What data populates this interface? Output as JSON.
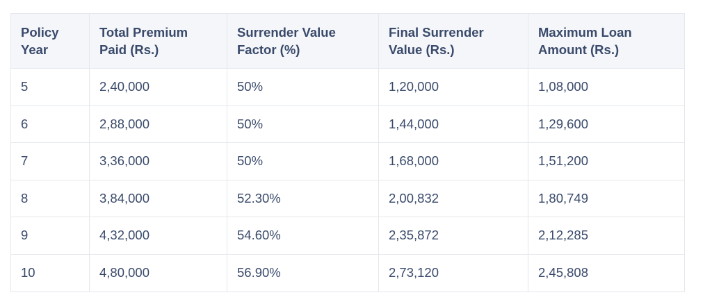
{
  "table": {
    "headers": [
      "Policy Year",
      "Total Premium Paid (Rs.)",
      "Surrender Value Factor (%)",
      "Final Surrender Value (Rs.)",
      "Maximum Loan Amount (Rs.)"
    ],
    "rows": [
      [
        "5",
        "2,40,000",
        "50%",
        "1,20,000",
        "1,08,000"
      ],
      [
        "6",
        "2,88,000",
        "50%",
        "1,44,000",
        "1,29,600"
      ],
      [
        "7",
        "3,36,000",
        "50%",
        "1,68,000",
        "1,51,200"
      ],
      [
        "8",
        "3,84,000",
        "52.30%",
        "2,00,832",
        "1,80,749"
      ],
      [
        "9",
        "4,32,000",
        "54.60%",
        "2,35,872",
        "2,12,285"
      ],
      [
        "10",
        "4,80,000",
        "56.90%",
        "2,73,120",
        "2,45,808"
      ]
    ]
  },
  "colors": {
    "header_bg": "#f4f6f9",
    "text": "#3a4a6b",
    "border": "#e4e7ed"
  }
}
